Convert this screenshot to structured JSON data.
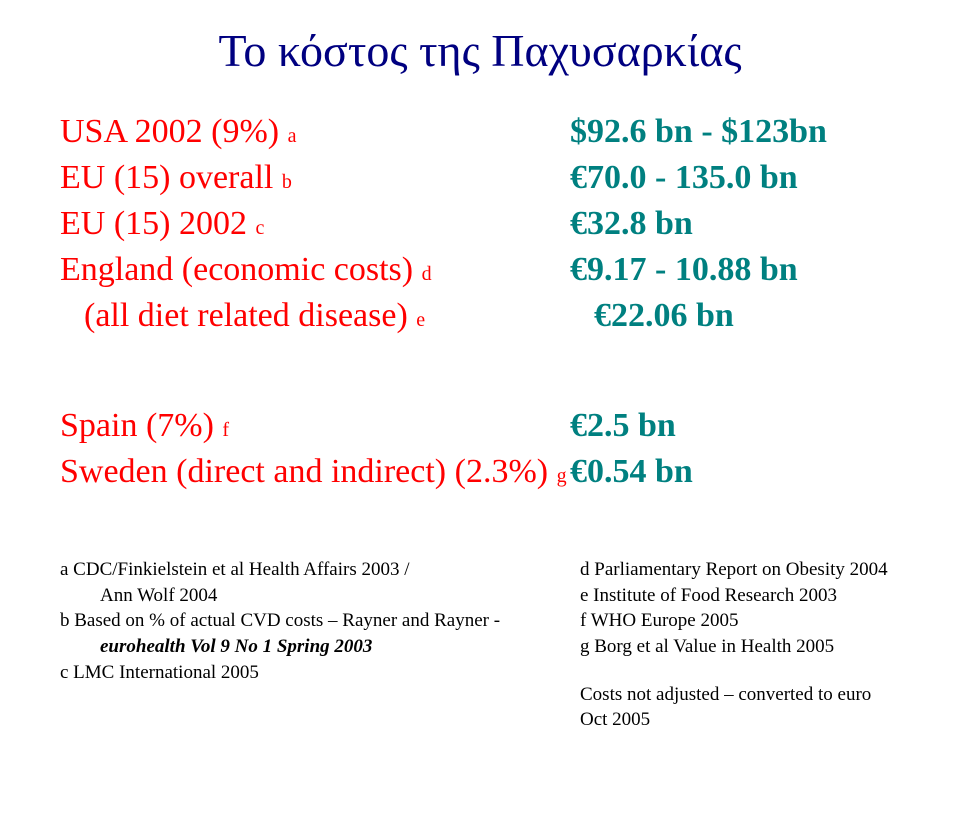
{
  "title": {
    "text": "Το κόστος της Παχυσαρκίας",
    "color": "#000080",
    "fontsize": 46
  },
  "rows_block1": [
    {
      "label": "USA 2002 (9%)",
      "sub": "a",
      "label_color": "#ff0000",
      "value": "$92.6 bn - $123bn",
      "value_color": "#008080"
    },
    {
      "label": "EU (15) overall",
      "sub": "b",
      "label_color": "#ff0000",
      "value": "€70.0 - 135.0 bn",
      "value_color": "#008080"
    },
    {
      "label": "EU (15) 2002",
      "sub": "c",
      "label_color": "#ff0000",
      "value": "€32.8 bn",
      "value_color": "#008080"
    },
    {
      "label": "England (economic costs)",
      "sub": "d",
      "label_color": "#ff0000",
      "value": "€9.17 - 10.88 bn",
      "value_color": "#008080"
    },
    {
      "label": "(all diet related disease)",
      "sub": "e",
      "label_color": "#ff0000",
      "value": "€22.06 bn",
      "value_color": "#008080",
      "indent": true
    }
  ],
  "rows_block2": [
    {
      "label": "Spain (7%)",
      "sub": "f",
      "label_color": "#ff0000",
      "value": "€2.5 bn",
      "value_color": "#008080"
    },
    {
      "label": "Sweden (direct and indirect) (2.3%)",
      "sub": "g",
      "label_color": "#ff0000",
      "value": "€0.54 bn",
      "value_color": "#008080"
    }
  ],
  "footnotes_left": [
    {
      "text": "a CDC/Finkielstein et al Health Affairs 2003 /",
      "indent": false
    },
    {
      "text": "Ann Wolf 2004",
      "indent": true
    },
    {
      "text": "b Based on % of actual CVD costs – Rayner and Rayner -",
      "indent": false
    },
    {
      "text": "eurohealth Vol 9 No 1 Spring 2003",
      "indent": true,
      "italic": true,
      "bold": true
    },
    {
      "text": "c LMC International 2005",
      "indent": false
    }
  ],
  "footnotes_right": [
    {
      "text": "d Parliamentary Report on Obesity 2004"
    },
    {
      "text": "e Institute of Food Research 2003"
    },
    {
      "text": "f  WHO Europe 2005"
    },
    {
      "text": "g Borg et al Value in Health 2005"
    }
  ],
  "footnote_extra": "Costs not adjusted – converted to euro Oct 2005",
  "colors": {
    "title": "#000080",
    "label": "#ff0000",
    "value": "#008080",
    "footnote": "#000000",
    "background": "#ffffff"
  },
  "fontsizes": {
    "title": 46,
    "row": 34,
    "sub": 20,
    "footnote": 19
  }
}
